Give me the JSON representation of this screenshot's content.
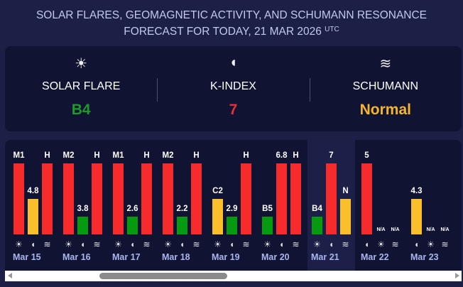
{
  "title": {
    "line1": "SOLAR FLARES, GEOMAGNETIC ACTIVITY, AND SCHUMANN RESONANCE",
    "line2": "FORECAST FOR TODAY, 21 MAR 2026",
    "tz": "UTC"
  },
  "summary": [
    {
      "icon": "sun-icon",
      "glyph": "☀",
      "label": "SOLAR FLARE",
      "value": "B4",
      "color": "#1f9a2a"
    },
    {
      "icon": "magnet-icon",
      "glyph": "◖",
      "label": "K-INDEX",
      "value": "7",
      "color": "#e8303a"
    },
    {
      "icon": "waves-icon",
      "glyph": "≋",
      "label": "SCHUMANN",
      "value": "Normal",
      "color": "#f5b52e"
    }
  ],
  "colors": {
    "red": "#f72b2b",
    "yellow": "#fbbf2b",
    "green": "#069a10"
  },
  "days": [
    {
      "date": "Mar 15",
      "cols": [
        {
          "type": "sun",
          "label": "M1",
          "level": 1,
          "color": "red"
        },
        {
          "type": "magnet",
          "label": "4.8",
          "level": 0.5,
          "color": "yellow"
        },
        {
          "type": "waves",
          "label": "H",
          "level": 1,
          "color": "red"
        }
      ]
    },
    {
      "date": "Mar 16",
      "cols": [
        {
          "type": "sun",
          "label": "M2",
          "level": 1,
          "color": "red"
        },
        {
          "type": "magnet",
          "label": "3.8",
          "level": 0.25,
          "color": "green"
        },
        {
          "type": "waves",
          "label": "H",
          "level": 1,
          "color": "red"
        }
      ]
    },
    {
      "date": "Mar 17",
      "cols": [
        {
          "type": "sun",
          "label": "M1",
          "level": 1,
          "color": "red"
        },
        {
          "type": "magnet",
          "label": "2.6",
          "level": 0.25,
          "color": "green"
        },
        {
          "type": "waves",
          "label": "H",
          "level": 1,
          "color": "red"
        }
      ]
    },
    {
      "date": "Mar 18",
      "cols": [
        {
          "type": "sun",
          "label": "M2",
          "level": 1,
          "color": "red"
        },
        {
          "type": "magnet",
          "label": "2.2",
          "level": 0.25,
          "color": "green"
        },
        {
          "type": "waves",
          "label": "H",
          "level": 1,
          "color": "red"
        }
      ]
    },
    {
      "date": "Mar 19",
      "cols": [
        {
          "type": "sun",
          "label": "C2",
          "level": 0.5,
          "color": "yellow"
        },
        {
          "type": "magnet",
          "label": "2.9",
          "level": 0.25,
          "color": "green"
        },
        {
          "type": "waves",
          "label": "H",
          "level": 1,
          "color": "red"
        }
      ]
    },
    {
      "date": "Mar 20",
      "cols": [
        {
          "type": "sun",
          "label": "B5",
          "level": 0.25,
          "color": "green"
        },
        {
          "type": "magnet",
          "label": "6.8",
          "level": 1,
          "color": "red"
        },
        {
          "type": "waves",
          "label": "H",
          "level": 1,
          "color": "red"
        }
      ]
    },
    {
      "date": "Mar 21",
      "today": true,
      "cols": [
        {
          "type": "sun",
          "label": "B4",
          "level": 0.25,
          "color": "green"
        },
        {
          "type": "magnet",
          "label": "7",
          "level": 1,
          "color": "red"
        },
        {
          "type": "waves",
          "label": "N",
          "level": 0.5,
          "color": "yellow"
        }
      ]
    },
    {
      "date": "Mar 22",
      "cols": [
        {
          "type": "magnet",
          "label": "5",
          "level": 1,
          "color": "red"
        },
        {
          "type": "sun",
          "label": "N/A",
          "level": 0,
          "color": "red"
        },
        {
          "type": "waves",
          "label": "N/A",
          "level": 0,
          "color": "red"
        }
      ]
    },
    {
      "date": "Mar 23",
      "cols": [
        {
          "type": "magnet",
          "label": "4.3",
          "level": 0.5,
          "color": "yellow"
        },
        {
          "type": "sun",
          "label": "N/A",
          "level": 0,
          "color": "red"
        },
        {
          "type": "waves",
          "label": "N/A",
          "level": 0,
          "color": "red"
        }
      ]
    }
  ]
}
